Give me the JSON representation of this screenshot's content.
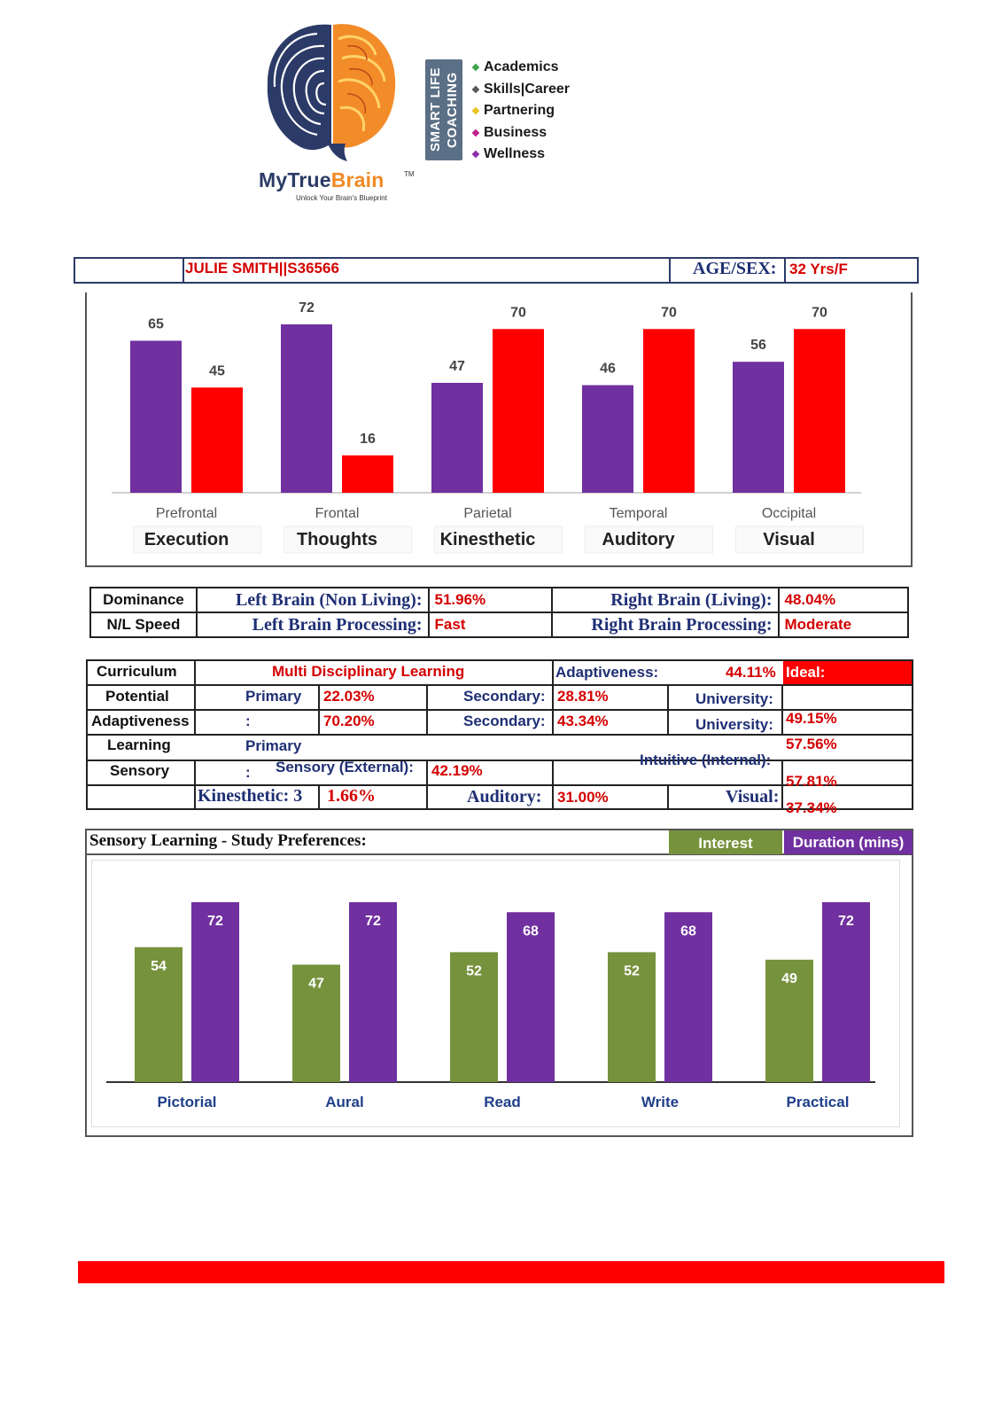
{
  "header": {
    "brand_part1": "MyTrue",
    "brand_part2": "Brain",
    "brand_tm": "TM",
    "brand_tagline": "Unlock Your Brain's Blueprint",
    "coaching_label": "SMART LIFE COACHING",
    "coaching_items": [
      {
        "label": "Academics",
        "color": "#3aa34a"
      },
      {
        "label": "Skills|Career",
        "color": "#555555"
      },
      {
        "label": "Partnering",
        "color": "#e8c21a"
      },
      {
        "label": "Business",
        "color": "#c2188a"
      },
      {
        "label": "Wellness",
        "color": "#8a2aa8"
      }
    ]
  },
  "identity": {
    "name_id": "JULIE SMITH||S36566",
    "age_sex_label": "AGE/SEX:",
    "age_sex_value": "32 Yrs/F"
  },
  "chart_data": [
    {
      "type": "bar",
      "categories": [
        "Prefrontal",
        "Frontal",
        "Parietal",
        "Temporal",
        "Occipital"
      ],
      "sublabels": [
        "Execution",
        "Thoughts",
        "Kinesthetic",
        "Auditory",
        "Visual"
      ],
      "series": [
        {
          "values": [
            65,
            72,
            47,
            46,
            56
          ],
          "color": "#7030a0"
        },
        {
          "values": [
            45,
            16,
            70,
            70,
            70
          ],
          "color": "#ff0000"
        }
      ],
      "ylim": [
        0,
        72
      ],
      "grid": false
    },
    {
      "type": "bar",
      "title": "Sensory Learning - Study Preferences:",
      "categories": [
        "Pictorial",
        "Aural",
        "Read",
        "Write",
        "Practical"
      ],
      "series": [
        {
          "name": "Interest",
          "values": [
            54,
            47,
            52,
            52,
            49
          ],
          "color": "#76923c"
        },
        {
          "name": "Duration (mins)",
          "values": [
            72,
            72,
            68,
            68,
            72
          ],
          "color": "#7030a0"
        }
      ],
      "ylim": [
        0,
        72
      ],
      "legend": "top-right",
      "grid": false
    }
  ],
  "dominance": {
    "label1": "Dominance",
    "label2": "N/L Speed",
    "left_living_label": "Left Brain (Non Living):",
    "left_living_value": "51.96%",
    "right_living_label": "Right Brain (Living):",
    "right_living_value": "48.04%",
    "left_proc_label": "Left Brain Processing:",
    "left_proc_value": "Fast",
    "right_proc_label": "Right Brain Processing:",
    "right_proc_value": "Moderate"
  },
  "curriculum": {
    "curriculum_label": "Curriculum",
    "curriculum_value": "Multi Disciplinary Learning",
    "adaptiveness_label": "Adaptiveness:",
    "adaptiveness_value": "44.11%",
    "ideal_label": "Ideal:",
    "potential_label": "Potential",
    "primary_label": "Primary",
    "primary_value": "22.03%",
    "secondary_label": "Secondary:",
    "secondary_value": "28.81%",
    "university_label": "University:",
    "adapt_label": "Adaptiveness",
    "colon": ":",
    "adapt_primary_value": "70.20%",
    "adapt_secondary_value": "43.34%",
    "adapt_university_value": "49.15%",
    "learning_label": "Learning",
    "learning_primary_label": "Primary",
    "learning_value": "57.56%",
    "sensory_label": "Sensory",
    "sensory_ext_label": "Sensory (External):",
    "sensory_ext_value": "42.19%",
    "intuitive_label": "Intuitive (Internal):",
    "intuitive_value": "57.81%",
    "kinesthetic_label": "Kinesthetic: 3",
    "kinesthetic_value": "1.66%",
    "auditory_label": "Auditory:",
    "auditory_value": "31.00%",
    "visual_label": "Visual:",
    "visual_value": "37.34%"
  }
}
